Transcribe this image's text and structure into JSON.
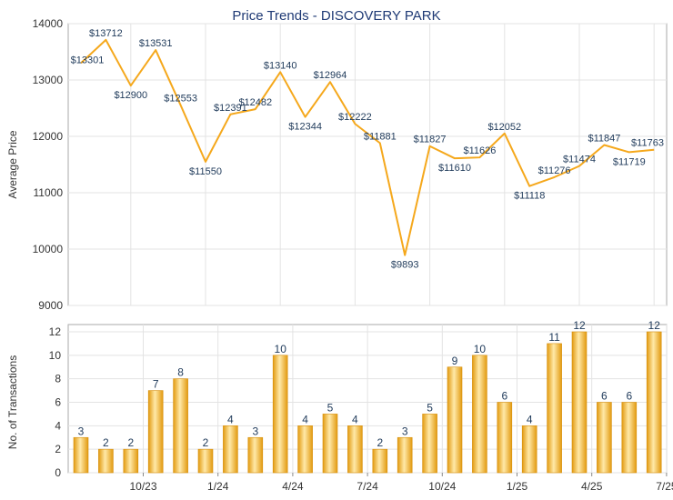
{
  "title": "Price Trends - DISCOVERY PARK",
  "colors": {
    "line": "#f5a81c",
    "bar_light": "#ffe9a8",
    "bar_dark": "#e29a10",
    "title": "#1f3a75",
    "grid": "#e3e3e3",
    "axis": "#555555"
  },
  "chart_data": [
    {
      "type": "line",
      "ylabel": "Average Price",
      "ylim": [
        9000,
        14000
      ],
      "yticks": [
        "14000",
        "13000",
        "12000",
        "11000",
        "10000",
        "9000"
      ],
      "values": [
        13301,
        13712,
        12900,
        13531,
        12553,
        11550,
        12391,
        12482,
        13140,
        12344,
        12964,
        12222,
        11881,
        9893,
        11827,
        11610,
        11626,
        12052,
        11118,
        11276,
        11474,
        11847,
        11719,
        11763
      ],
      "labels": [
        "$13301",
        "$13712",
        "$12900",
        "$13531",
        "$12553",
        "$11550",
        "$12391",
        "$12482",
        "$13140",
        "$12344",
        "$12964",
        "$12222",
        "$11881",
        "$9893",
        "$11827",
        "$11610",
        "$11626",
        "$12052",
        "$11118",
        "$11276",
        "$11474",
        "$11847",
        "$11719",
        "$11763"
      ]
    },
    {
      "type": "bar",
      "ylabel": "No. of Transactions",
      "ylim": [
        0,
        12
      ],
      "yticks": [
        "12",
        "10",
        "8",
        "6",
        "4",
        "2",
        "0"
      ],
      "values": [
        3,
        2,
        2,
        7,
        8,
        2,
        4,
        3,
        10,
        4,
        5,
        4,
        2,
        3,
        5,
        9,
        10,
        6,
        4,
        11,
        12,
        6,
        6,
        12
      ],
      "xticks": [
        {
          "index": 2,
          "label": "10/23"
        },
        {
          "index": 5,
          "label": "1/24"
        },
        {
          "index": 8,
          "label": "4/24"
        },
        {
          "index": 11,
          "label": "7/24"
        },
        {
          "index": 14,
          "label": "10/24"
        },
        {
          "index": 17,
          "label": "1/25"
        },
        {
          "index": 20,
          "label": "4/25"
        },
        {
          "index": 23,
          "label": "7/25"
        }
      ]
    }
  ]
}
